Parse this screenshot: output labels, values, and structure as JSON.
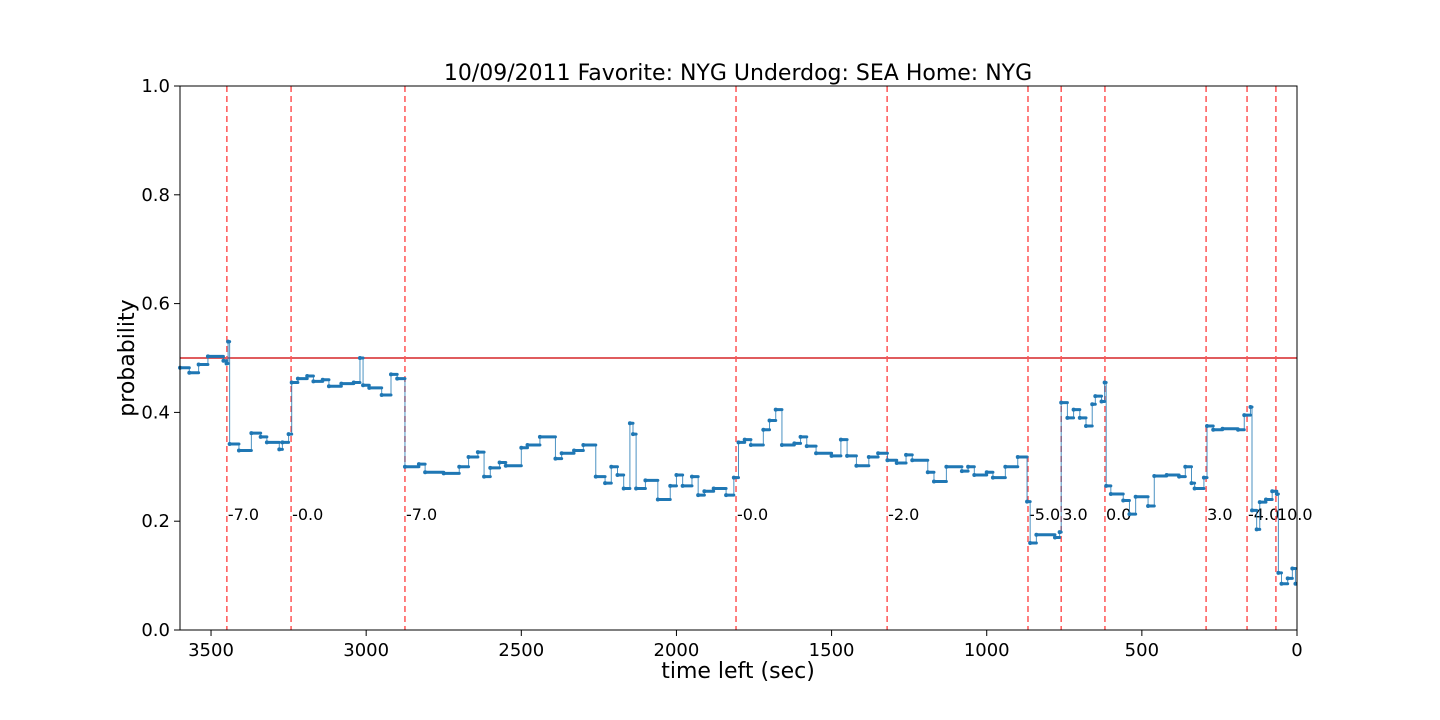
{
  "chart_data": {
    "type": "step",
    "title": "10/09/2011 Favorite: NYG Underdog: SEA Home: NYG",
    "xlabel": "time left (sec)",
    "ylabel": "probability",
    "xlim": [
      3600,
      0
    ],
    "ylim": [
      0,
      1
    ],
    "xticks": [
      3500,
      3000,
      2500,
      2000,
      1500,
      1000,
      500,
      0
    ],
    "yticks": [
      {
        "value": 0,
        "label": "0.0"
      },
      0.2,
      0.4,
      0.6,
      0.8,
      {
        "value": 1,
        "label": "1.0"
      }
    ],
    "color": "#1f77b4",
    "hline": {
      "y": 0.5,
      "color": "#d62728"
    },
    "vlines": {
      "color": "#ff5555",
      "x": [
        3449,
        3242,
        2875,
        1808,
        1321,
        867,
        760,
        619,
        293,
        161,
        68
      ],
      "labels": [
        "-7.0",
        "-0.0",
        "-7.0",
        "-0.0",
        "-2.0",
        "-5.0",
        "3.0",
        "0.0",
        "3.0",
        "-4.0",
        "10.0"
      ]
    },
    "x": [
      3600,
      3570,
      3540,
      3510,
      3460,
      3450,
      3445,
      3440,
      3410,
      3370,
      3340,
      3320,
      3280,
      3270,
      3250,
      3240,
      3220,
      3190,
      3170,
      3140,
      3120,
      3080,
      3040,
      3020,
      3010,
      2990,
      2950,
      2920,
      2900,
      2875,
      2830,
      2810,
      2750,
      2700,
      2670,
      2640,
      2620,
      2600,
      2570,
      2550,
      2500,
      2480,
      2440,
      2390,
      2370,
      2330,
      2300,
      2260,
      2230,
      2210,
      2190,
      2170,
      2150,
      2140,
      2130,
      2100,
      2060,
      2020,
      2000,
      1980,
      1950,
      1930,
      1910,
      1880,
      1840,
      1815,
      1800,
      1780,
      1760,
      1720,
      1700,
      1680,
      1660,
      1620,
      1600,
      1580,
      1550,
      1500,
      1470,
      1450,
      1420,
      1380,
      1350,
      1320,
      1290,
      1260,
      1240,
      1190,
      1170,
      1130,
      1080,
      1060,
      1040,
      1000,
      980,
      940,
      900,
      870,
      860,
      840,
      780,
      765,
      760,
      740,
      720,
      700,
      680,
      660,
      650,
      630,
      620,
      615,
      600,
      560,
      540,
      520,
      480,
      460,
      420,
      380,
      360,
      340,
      330,
      300,
      290,
      270,
      240,
      190,
      170,
      150,
      145,
      130,
      120,
      100,
      80,
      65,
      60,
      50,
      30,
      15,
      5
    ],
    "values": [
      0.482,
      0.473,
      0.488,
      0.503,
      0.495,
      0.49,
      0.53,
      0.342,
      0.33,
      0.362,
      0.355,
      0.345,
      0.332,
      0.345,
      0.36,
      0.455,
      0.462,
      0.467,
      0.457,
      0.46,
      0.448,
      0.453,
      0.455,
      0.5,
      0.45,
      0.445,
      0.432,
      0.47,
      0.462,
      0.3,
      0.305,
      0.29,
      0.288,
      0.3,
      0.318,
      0.327,
      0.282,
      0.298,
      0.308,
      0.302,
      0.335,
      0.34,
      0.355,
      0.315,
      0.325,
      0.33,
      0.34,
      0.282,
      0.27,
      0.3,
      0.285,
      0.26,
      0.38,
      0.36,
      0.26,
      0.275,
      0.24,
      0.265,
      0.285,
      0.265,
      0.282,
      0.248,
      0.255,
      0.26,
      0.248,
      0.28,
      0.345,
      0.35,
      0.34,
      0.368,
      0.385,
      0.405,
      0.34,
      0.343,
      0.355,
      0.338,
      0.325,
      0.32,
      0.35,
      0.32,
      0.302,
      0.318,
      0.325,
      0.312,
      0.307,
      0.322,
      0.312,
      0.29,
      0.273,
      0.3,
      0.292,
      0.3,
      0.285,
      0.29,
      0.28,
      0.3,
      0.318,
      0.236,
      0.16,
      0.175,
      0.17,
      0.18,
      0.418,
      0.39,
      0.405,
      0.39,
      0.375,
      0.415,
      0.43,
      0.42,
      0.455,
      0.265,
      0.25,
      0.238,
      0.213,
      0.245,
      0.228,
      0.283,
      0.285,
      0.282,
      0.3,
      0.27,
      0.26,
      0.28,
      0.375,
      0.368,
      0.37,
      0.368,
      0.395,
      0.41,
      0.22,
      0.185,
      0.235,
      0.24,
      0.255,
      0.25,
      0.105,
      0.085,
      0.095,
      0.113,
      0.085
    ]
  }
}
